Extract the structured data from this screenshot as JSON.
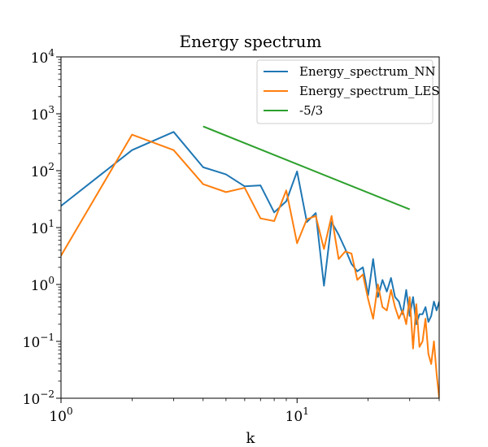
{
  "chart_data": {
    "type": "line",
    "title": "Energy spectrum",
    "xlabel": "k",
    "ylabel": "",
    "xscale": "log",
    "yscale": "log",
    "xlim": [
      1,
      40
    ],
    "ylim": [
      0.01,
      10000
    ],
    "grid": false,
    "legend_placement": "top-right",
    "x_ticks": [
      {
        "value": 1,
        "base": "10",
        "exp": "0"
      },
      {
        "value": 10,
        "base": "10",
        "exp": "1"
      }
    ],
    "y_ticks": [
      {
        "value": 0.01,
        "base": "10",
        "exp": "−2"
      },
      {
        "value": 0.1,
        "base": "10",
        "exp": "−1"
      },
      {
        "value": 1,
        "base": "10",
        "exp": "0"
      },
      {
        "value": 10,
        "base": "10",
        "exp": "1"
      },
      {
        "value": 100,
        "base": "10",
        "exp": "2"
      },
      {
        "value": 1000,
        "base": "10",
        "exp": "3"
      },
      {
        "value": 10000,
        "base": "10",
        "exp": "4"
      }
    ],
    "series": [
      {
        "name": "Energy_spectrum_NN",
        "color": "#1f77b4",
        "x": [
          1,
          2,
          3,
          4,
          5,
          6,
          7,
          8,
          9,
          10,
          11,
          12,
          13,
          14,
          15,
          16,
          17,
          18,
          19,
          20,
          21,
          22,
          23,
          24,
          25,
          26,
          27,
          28,
          29,
          30,
          31,
          32,
          33,
          34,
          35,
          36,
          37,
          38,
          39,
          40
        ],
        "y": [
          24,
          230,
          480,
          115,
          86,
          53,
          55,
          18.5,
          29,
          97,
          12.5,
          18,
          0.95,
          12.5,
          7.5,
          4.2,
          2.3,
          1.7,
          2.0,
          0.65,
          2.8,
          0.6,
          1.2,
          0.75,
          1.3,
          0.6,
          0.5,
          0.3,
          0.8,
          0.28,
          0.6,
          0.2,
          0.3,
          0.3,
          0.4,
          0.22,
          0.28,
          0.5,
          0.35,
          0.5
        ]
      },
      {
        "name": "Energy_spectrum_LES",
        "color": "#ff7f0e",
        "x": [
          1,
          2,
          3,
          4,
          5,
          6,
          7,
          8,
          9,
          10,
          11,
          12,
          13,
          14,
          15,
          16,
          17,
          18,
          19,
          20,
          21,
          22,
          23,
          24,
          25,
          26,
          27,
          28,
          29,
          30,
          31,
          32,
          33,
          34,
          35,
          36,
          37,
          38,
          39,
          40
        ],
        "y": [
          3.2,
          430,
          230,
          58,
          42,
          50,
          14.5,
          13,
          45,
          5.3,
          14,
          16,
          4.2,
          16,
          2.8,
          3.8,
          3.5,
          1.2,
          1.5,
          0.55,
          0.25,
          1.0,
          0.4,
          0.35,
          0.8,
          0.4,
          0.25,
          0.35,
          0.2,
          0.6,
          0.075,
          0.45,
          0.08,
          0.1,
          0.25,
          0.06,
          0.04,
          0.1,
          0.027,
          0.01
        ]
      },
      {
        "name": "-5/3",
        "color": "#2ca02c",
        "x": [
          4,
          30
        ],
        "y": [
          600,
          20.9
        ]
      }
    ]
  }
}
